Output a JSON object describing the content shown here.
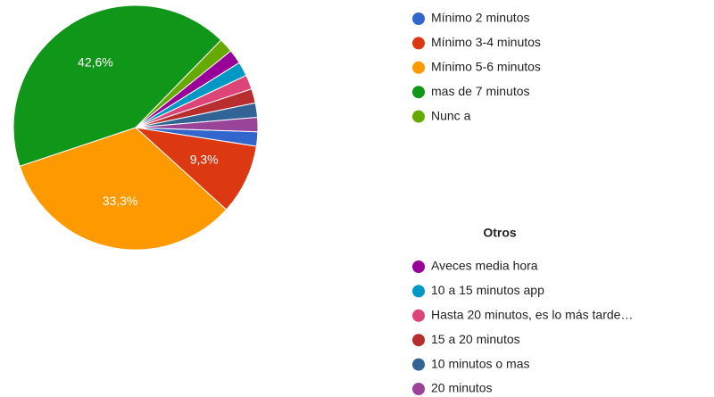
{
  "chart_data": {
    "type": "pie",
    "categories": [
      "Mínimo 2 minutos",
      "Mínimo 3-4 minutos",
      "Mínimo 5-6 minutos",
      "mas de 7 minutos",
      "Nunc a"
    ],
    "values": [
      1.9,
      9.3,
      33.3,
      42.6,
      1.9
    ],
    "value_labels": [
      null,
      "9,3%",
      "33,3%",
      "42,6%",
      null
    ],
    "colors": [
      "#3366cc",
      "#dc3912",
      "#ff9900",
      "#109618",
      "#66aa00"
    ],
    "others": {
      "title": "Otros",
      "categories": [
        "Aveces media hora",
        "10 a 15 minutos app",
        "Hasta 20 minutos, es lo más tarde…",
        "15 a 20 minutos",
        "10 minutos o mas",
        "20 minutos"
      ],
      "values": [
        1.9,
        1.9,
        1.9,
        1.9,
        1.9,
        1.9
      ],
      "colors": [
        "#990099",
        "#0099c6",
        "#dd4477",
        "#b82e2e",
        "#316395",
        "#994499"
      ]
    }
  }
}
